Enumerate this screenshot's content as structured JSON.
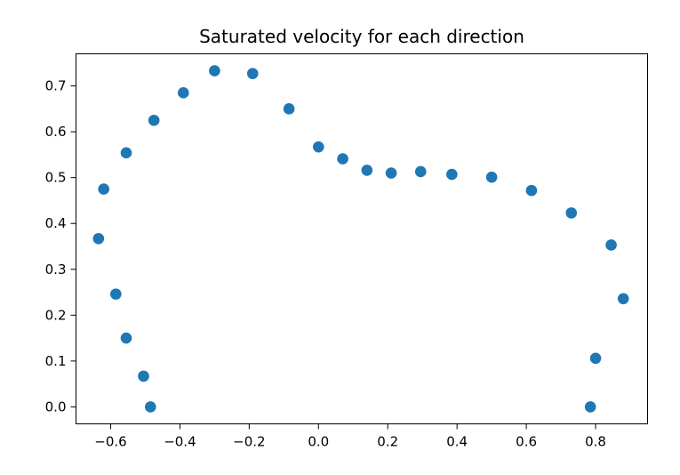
{
  "chart_data": {
    "type": "scatter",
    "title": "Saturated velocity for each direction",
    "xlabel": "",
    "ylabel": "",
    "xlim": [
      -0.7,
      0.95
    ],
    "ylim": [
      -0.037,
      0.77
    ],
    "xticks": [
      -0.6,
      -0.4,
      -0.2,
      0.0,
      0.2,
      0.4,
      0.6,
      0.8
    ],
    "xtick_labels": [
      "−0.6",
      "−0.4",
      "−0.2",
      "0.0",
      "0.2",
      "0.4",
      "0.6",
      "0.8"
    ],
    "yticks": [
      0.0,
      0.1,
      0.2,
      0.3,
      0.4,
      0.5,
      0.6,
      0.7
    ],
    "ytick_labels": [
      "0.0",
      "0.1",
      "0.2",
      "0.3",
      "0.4",
      "0.5",
      "0.6",
      "0.7"
    ],
    "grid": false,
    "marker_color": "#1f77b4",
    "series": [
      {
        "x": [
          -0.485,
          -0.505,
          -0.555,
          -0.585,
          -0.635,
          -0.62,
          -0.555,
          -0.475,
          -0.39,
          -0.3,
          -0.19,
          -0.085,
          0.0,
          0.07,
          0.14,
          0.21,
          0.295,
          0.385,
          0.5,
          0.615,
          0.73,
          0.845,
          0.88,
          0.8,
          0.785
        ],
        "y": [
          0.0,
          0.067,
          0.15,
          0.246,
          0.367,
          0.475,
          0.554,
          0.625,
          0.685,
          0.733,
          0.727,
          0.65,
          0.567,
          0.541,
          0.516,
          0.51,
          0.513,
          0.507,
          0.501,
          0.472,
          0.423,
          0.353,
          0.236,
          0.106,
          0.0
        ]
      }
    ]
  }
}
